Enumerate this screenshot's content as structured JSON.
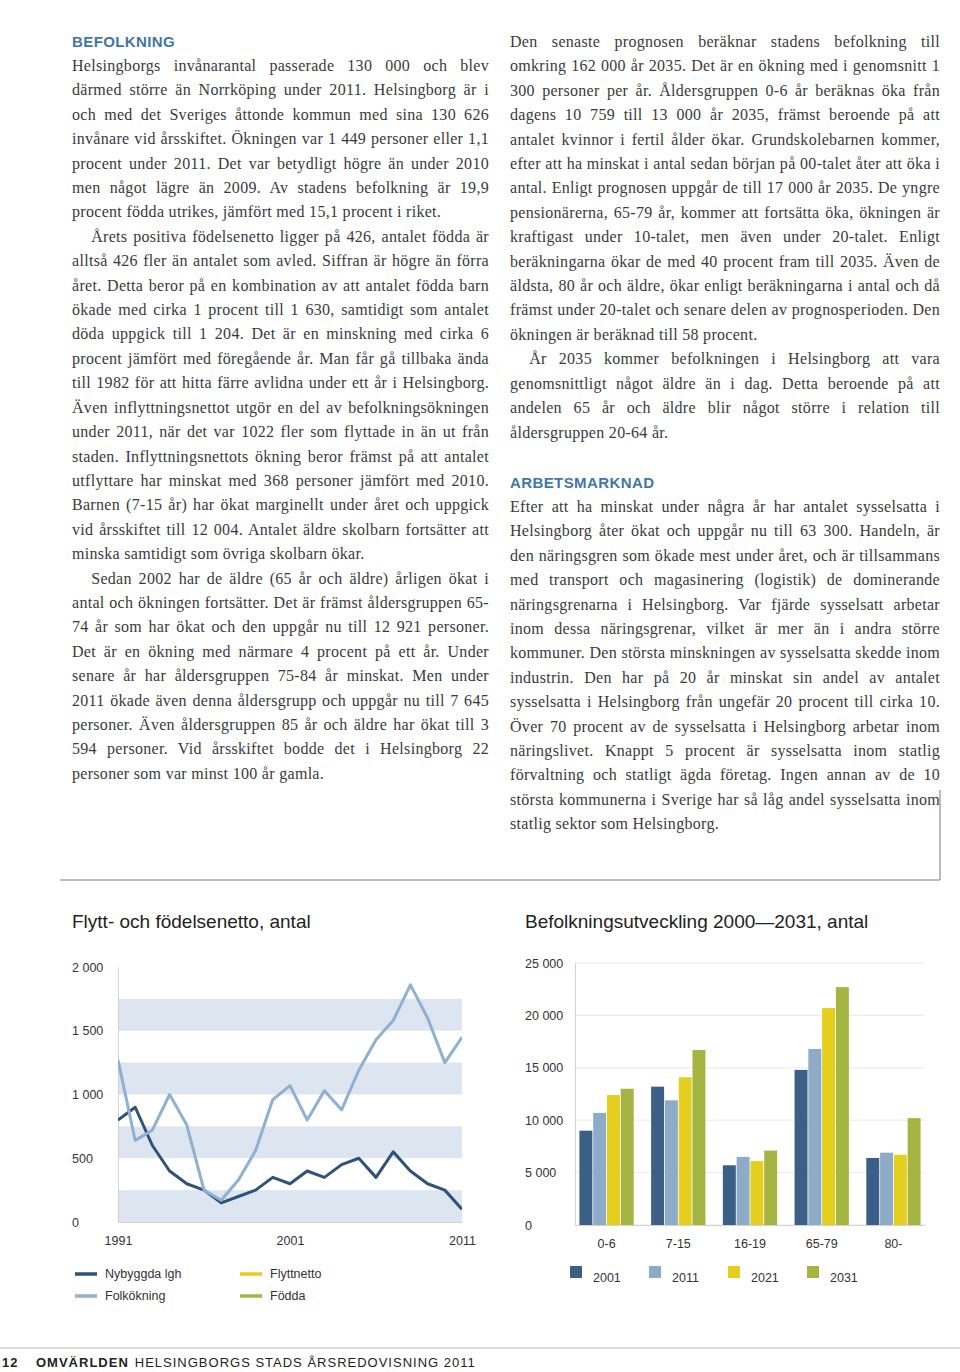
{
  "document": {
    "columns": [
      [
        {
          "type": "heading",
          "text": "BEFOLKNING"
        },
        {
          "type": "paragraph",
          "text": "Helsingborgs invånarantal passerade 130 000 och blev därmed större än Norrköping under 2011. Helsingborg är i och med det Sveriges åttonde kommun med sina 130 626 invånare vid årsskiftet. Ökningen var 1 449 personer eller 1,1 procent under 2011. Det var betydligt högre än under 2010 men något lägre än 2009. Av stadens befolkning är 19,9 procent födda utrikes, jämfört med 15,1 procent i riket."
        },
        {
          "type": "paragraph",
          "text": "Årets positiva födelsenetto ligger på 426, antalet födda är alltså 426 fler än antalet som avled. Siffran är högre än förra året. Detta beror på en kombination av att antalet födda barn ökade med cirka 1 procent till 1 630, samtidigt som antalet döda uppgick till 1 204. Det är en minskning med cirka 6 procent jämfört med föregående år. Man får gå tillbaka ända till 1982 för att hitta färre avlidna under ett år i Helsingborg. Även inflyttningsnettot utgör en del av befolkningsökningen under 2011, när det var 1022 fler som flyttade in än ut från staden. Inflyttningsnettots ökning beror främst på att antalet utflyttare har minskat med 368 personer jämfört med 2010. Barnen (7-15 år) har ökat marginellt under året och uppgick vid årsskiftet till 12 004. Antalet äldre skolbarn fortsätter att minska samtidigt som övriga skolbarn ökar."
        },
        {
          "type": "paragraph",
          "text": "Sedan 2002 har de äldre (65 år och äldre) årligen ökat i antal och ökningen fortsätter. Det är främst åldersgruppen 65-74 år som har ökat och den uppgår nu till 12 921 personer. Det är en ökning med närmare 4 procent på ett år. Under senare år har åldersgruppen 75-84 år minskat. Men under 2011 ökade även denna åldersgrupp och uppgår nu till 7 645 personer. Även åldersgruppen 85 år och äldre har ökat till 3 594 personer. Vid årsskiftet bodde det i Helsingborg 22 personer som var minst 100 år gamla."
        }
      ],
      [
        {
          "type": "paragraph",
          "text": "Den senaste prognosen beräknar stadens befolkning till omkring 162 000 år 2035. Det är en ökning med i genomsnitt 1 300 personer per år. Åldersgruppen 0-6 år beräknas öka från dagens 10 759 till 13 000 år 2035, främst beroende på att antalet kvinnor i fertil ålder ökar. Grundskolebarnen kommer, efter att ha minskat i antal sedan början på 00-talet åter att öka i antal. Enligt prognosen uppgår de till 17 000 år 2035. De yngre pensionärerna, 65-79 år, kommer att fortsätta öka, ökningen är kraftigast under 10-talet, men även under 20-talet. Enligt beräkningarna ökar de med 40 procent fram till 2035. Även de äldsta, 80 år och äldre, ökar enligt beräkningarna i antal och då främst under 20-talet och senare delen av prognosperioden. Den ökningen är beräknad till 58 procent."
        },
        {
          "type": "paragraph",
          "text": "År 2035 kommer befolkningen i Helsingborg att vara genomsnittligt något äldre än i dag. Detta beroende på att andelen 65 år och äldre blir något större i relation till åldersgruppen 20-64 år."
        },
        {
          "type": "heading",
          "text": "ARBETSMARKNAD"
        },
        {
          "type": "paragraph",
          "text": "Efter att ha minskat under några år har antalet sysselsatta i Helsingborg åter ökat och uppgår nu till 63 300. Handeln, är den näringsgren som ökade mest under året, och är tillsammans med transport och magasinering (logistik) de dominerande näringsgrenarna i Helsingborg. Var fjärde sysselsatt arbetar inom dessa näringsgrenar, vilket är mer än i andra större kommuner. Den största minskningen av sysselsatta skedde inom industrin. Den har på 20 år minskat sin andel av antalet sysselsatta i Helsingborg från ungefär 20 procent till cirka 10. Över 70 procent av de sysselsatta i Helsingborg arbetar inom näringslivet. Knappt 5 procent är sysselsatta inom statlig förvaltning och statligt ägda företag. Ingen annan av de 10 största kommunerna i Sverige har så låg andel sysselsatta inom statlig sektor som Helsingborg."
        }
      ]
    ],
    "footer": {
      "page": "12",
      "section": "OMVÄRLDEN",
      "title": "HELSINGBORGS STADS ÅRSREDOVISNING 2011"
    }
  },
  "chart_data": [
    {
      "type": "line",
      "title": "Flytt- och födelsenetto, antal",
      "x": [
        1991,
        1992,
        1993,
        1994,
        1995,
        1996,
        1997,
        1998,
        1999,
        2000,
        2001,
        2002,
        2003,
        2004,
        2005,
        2006,
        2007,
        2008,
        2009,
        2010,
        2011
      ],
      "xlim": [
        1991,
        2011
      ],
      "xticks": [
        1991,
        2001,
        2011
      ],
      "ylim": [
        0,
        2000
      ],
      "yticks": [
        0,
        500,
        {
          "value": 1000,
          "label": "1 000"
        },
        {
          "value": 1500,
          "label": "1 500"
        },
        {
          "value": 2000,
          "label": "2 000"
        }
      ],
      "grid": true,
      "legend": "bottom",
      "series": [
        {
          "name": "Nybyggda lgh",
          "color": "#2f5279",
          "values": [
            800,
            900,
            600,
            400,
            300,
            250,
            150,
            200,
            250,
            350,
            300,
            400,
            350,
            450,
            500,
            350,
            550,
            400,
            300,
            250,
            100
          ]
        },
        {
          "name": "Folkökning",
          "color": "#8fb0d0",
          "values": [
            1270,
            640,
            720,
            1000,
            760,
            250,
            170,
            330,
            560,
            960,
            1070,
            800,
            1030,
            880,
            1190,
            1430,
            1580,
            1860,
            1600,
            1250,
            1449
          ]
        },
        {
          "name": "Flyttnetto",
          "color": "#e6cc1f",
          "values": [
            null,
            null,
            null,
            null,
            null,
            null,
            null,
            null,
            null,
            null,
            null,
            null,
            null,
            null,
            null,
            null,
            null,
            null,
            null,
            null,
            null
          ]
        },
        {
          "name": "Födda",
          "color": "#a6b543",
          "values": [
            null,
            null,
            null,
            null,
            null,
            null,
            null,
            null,
            null,
            null,
            null,
            null,
            null,
            null,
            null,
            null,
            null,
            null,
            null,
            null,
            null
          ]
        }
      ]
    },
    {
      "type": "bar",
      "title": "Befolkningsutveckling 2000—2031, antal",
      "categories": [
        "0-6",
        "7-15",
        "16-19",
        "65-79",
        "80-"
      ],
      "ylim": [
        0,
        25000
      ],
      "yticks": [
        0,
        {
          "value": 5000,
          "label": "5 000"
        },
        {
          "value": 10000,
          "label": "10 000"
        },
        {
          "value": 15000,
          "label": "15 000"
        },
        {
          "value": 20000,
          "label": "20 000"
        },
        {
          "value": 25000,
          "label": "25 000"
        }
      ],
      "grid": true,
      "legend": "bottom",
      "series": [
        {
          "name": "2001",
          "color": "#3b5f86",
          "values": [
            9000,
            13200,
            5700,
            14800,
            6400
          ]
        },
        {
          "name": "2011",
          "color": "#8eacc8",
          "values": [
            10700,
            11900,
            6500,
            16800,
            6900
          ]
        },
        {
          "name": "2021",
          "color": "#e4ce1e",
          "values": [
            12400,
            14100,
            6100,
            20700,
            6700
          ]
        },
        {
          "name": "2031",
          "color": "#a5b542",
          "values": [
            13000,
            16700,
            7100,
            22700,
            10200
          ]
        }
      ]
    }
  ]
}
